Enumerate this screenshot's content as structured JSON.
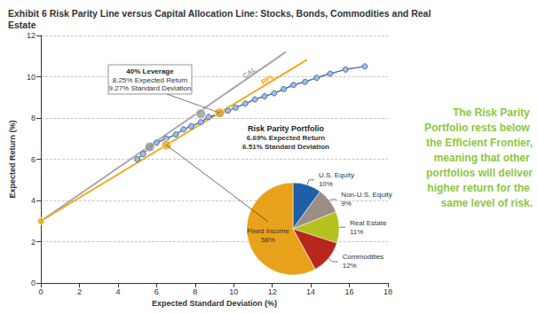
{
  "title": "Exhibit 6 Risk Parity Line versus Capital Allocation Line: Stocks, Bonds, Commodities and Real Estate",
  "sidebar": "The Risk Parity Portfolio rests below the Efficient Frontier, meaning that other portfolios will deliver higher return for the same level of risk.",
  "chart_data": [
    {
      "type": "line",
      "x_label": "Expected Standard Deviation (%)",
      "y_label": "Expected Return (%)",
      "xlim": [
        0,
        18
      ],
      "xticks": [
        0,
        2,
        4,
        6,
        8,
        10,
        12,
        14,
        16,
        18
      ],
      "ylim": [
        0,
        12
      ],
      "yticks": [
        0,
        2,
        4,
        6,
        8,
        10,
        12
      ],
      "grid": true,
      "series": [
        {
          "name": "CAL",
          "type": "line",
          "color": "#a6a6a6",
          "line_style": "solid",
          "x": [
            0,
            12.7
          ],
          "values": [
            3,
            11.2
          ]
        },
        {
          "name": "RPL",
          "type": "line",
          "color": "#f0a81c",
          "line_style": "solid",
          "x": [
            0,
            13.8
          ],
          "values": [
            3,
            10.82
          ]
        },
        {
          "type": "line",
          "color": "#4a6fa5",
          "marker": "circle",
          "line_style": "solid",
          "x": [
            5.0,
            5.3,
            5.6,
            6.0,
            6.5,
            7.0,
            7.4,
            7.8,
            8.3,
            8.7,
            9.3,
            9.7,
            10.1,
            10.6,
            11.1,
            11.6,
            12.1,
            12.6,
            13.1,
            13.7,
            14.3,
            15.0,
            15.8,
            16.8
          ],
          "values": [
            6.0,
            6.25,
            6.55,
            6.8,
            7.0,
            7.2,
            7.45,
            7.6,
            7.8,
            8.05,
            8.2,
            8.35,
            8.5,
            8.7,
            8.9,
            9.05,
            9.2,
            9.4,
            9.6,
            9.75,
            9.95,
            10.15,
            10.35,
            10.5
          ]
        },
        {
          "type": "scatter",
          "color": "#9a9a9a",
          "marker": "circle",
          "x": [
            5.65,
            8.3
          ],
          "values": [
            6.6,
            8.2
          ]
        },
        {
          "type": "scatter",
          "color": "#f0a81c",
          "marker": "circle",
          "x": [
            0,
            6.51,
            9.27
          ],
          "values": [
            3,
            6.69,
            8.25
          ]
        }
      ],
      "annotations": [
        {
          "text": "40% Leverage\n8.25% Expected Return\n9.27% Standard Deviation",
          "x": 9.27,
          "y": 8.25
        },
        {
          "text": "Risk Parity Portfolio\n6.69% Expected Return\n6.51% Standard Deviation",
          "x": 6.51,
          "y": 6.69
        }
      ]
    },
    {
      "type": "pie",
      "categories": [
        "U.S. Equity",
        "Non-U.S. Equity",
        "Real Estate",
        "Commodities",
        "Fixed Income"
      ],
      "values": [
        10,
        9,
        11,
        12,
        58
      ],
      "value_labels": [
        "10%",
        "9%",
        "11%",
        "12%",
        "58%"
      ],
      "colors": [
        "#1f5fa8",
        "#9a8f86",
        "#b5c21d",
        "#b8271e",
        "#e8a21b"
      ],
      "data_labels": true
    }
  ]
}
